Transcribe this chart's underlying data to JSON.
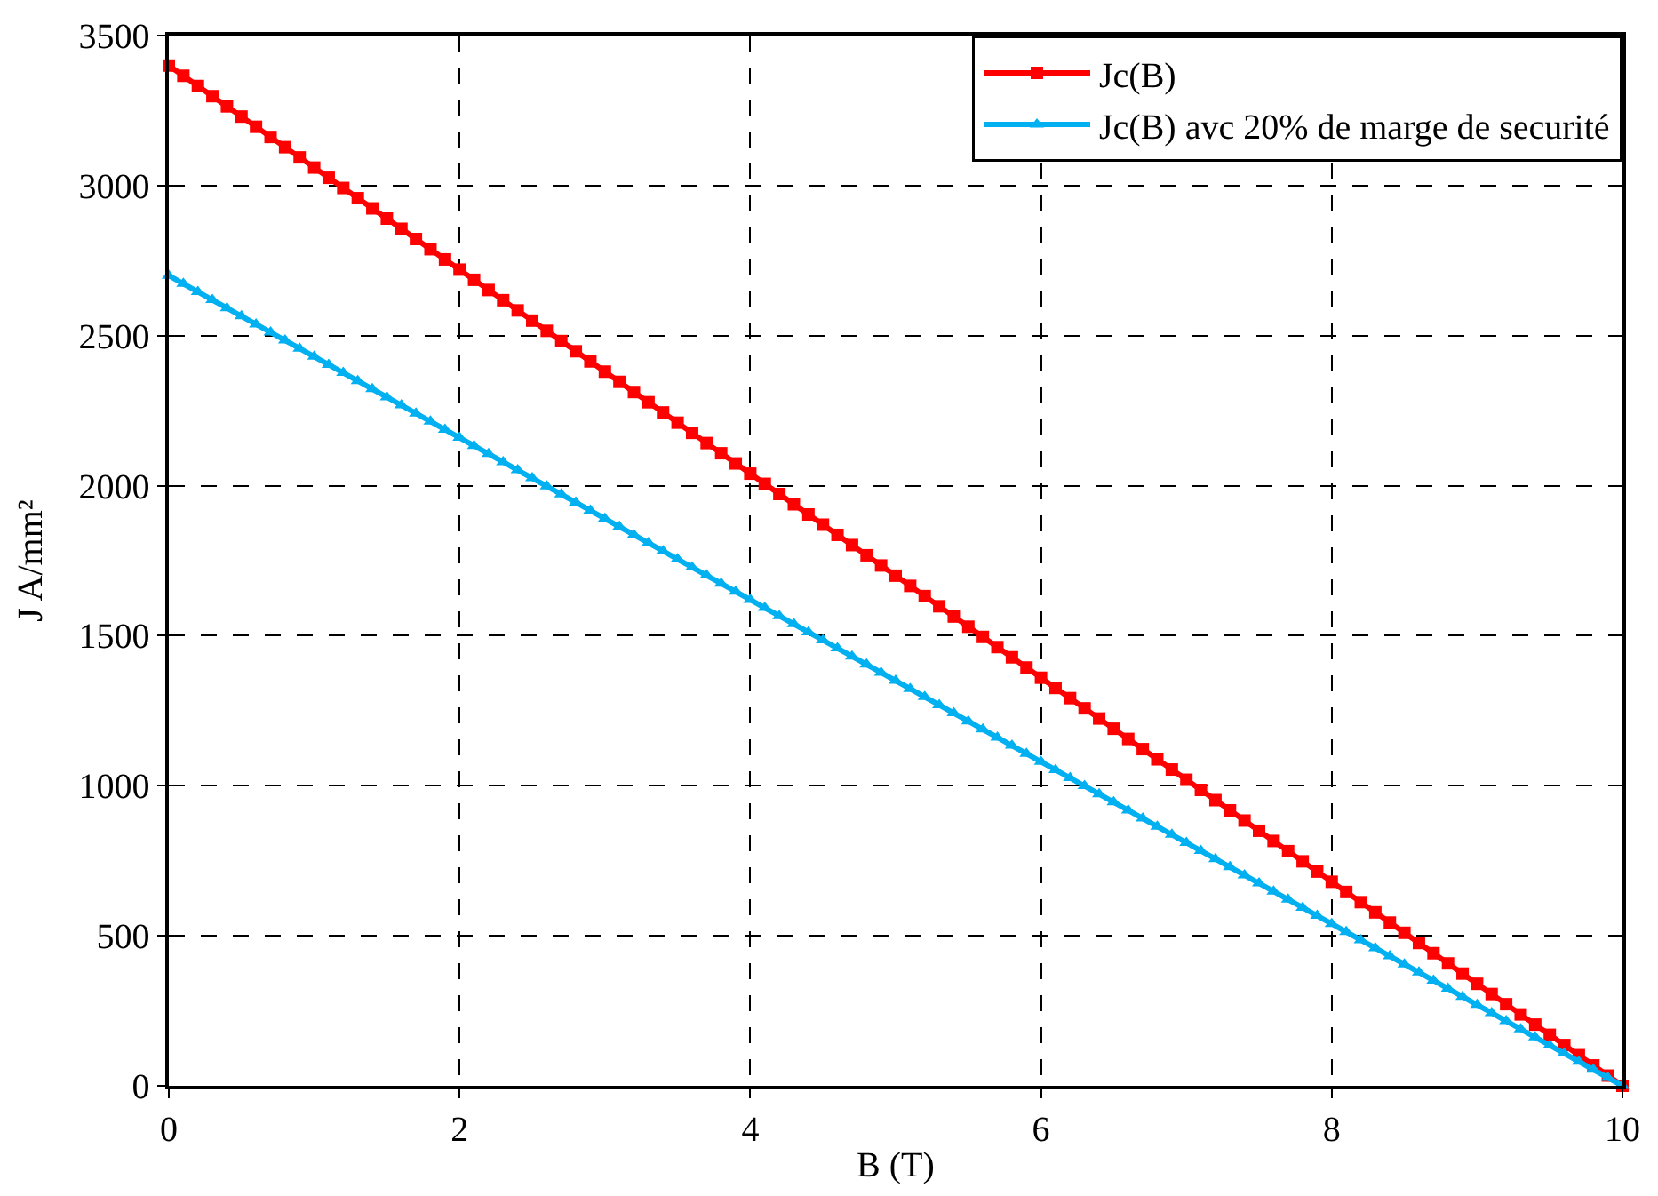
{
  "chart_data": {
    "type": "line",
    "xlabel": "B (T)",
    "ylabel": "J A/mm²",
    "x": [
      0,
      0.1,
      0.2,
      0.3,
      0.4,
      0.5,
      0.6,
      0.7,
      0.8,
      0.9,
      1,
      1.1,
      1.2,
      1.3,
      1.4,
      1.5,
      1.6,
      1.7,
      1.8,
      1.9,
      2,
      2.1,
      2.2,
      2.3,
      2.4,
      2.5,
      2.6,
      2.7,
      2.8,
      2.9,
      3,
      3.1,
      3.2,
      3.3,
      3.4,
      3.5,
      3.6,
      3.7,
      3.8,
      3.9,
      4,
      4.1,
      4.2,
      4.3,
      4.4,
      4.5,
      4.6,
      4.7,
      4.8,
      4.9,
      5,
      5.1,
      5.2,
      5.3,
      5.4,
      5.5,
      5.6,
      5.7,
      5.8,
      5.9,
      6,
      6.1,
      6.2,
      6.3,
      6.4,
      6.5,
      6.6,
      6.7,
      6.8,
      6.9,
      7,
      7.1,
      7.2,
      7.3,
      7.4,
      7.5,
      7.6,
      7.7,
      7.8,
      7.9,
      8,
      8.1,
      8.2,
      8.3,
      8.4,
      8.5,
      8.6,
      8.7,
      8.8,
      8.9,
      9,
      9.1,
      9.2,
      9.3,
      9.4,
      9.5,
      9.6,
      9.7,
      9.8,
      9.9,
      10
    ],
    "series": [
      {
        "name": "Jc(B)",
        "color": "#ff0000",
        "marker": "square",
        "values": [
          3400,
          3366,
          3332,
          3298,
          3264,
          3230,
          3196,
          3162,
          3128,
          3094,
          3060,
          3026,
          2992,
          2958,
          2924,
          2890,
          2856,
          2822,
          2788,
          2754,
          2720,
          2686,
          2652,
          2618,
          2584,
          2550,
          2516,
          2482,
          2448,
          2414,
          2380,
          2346,
          2312,
          2278,
          2244,
          2210,
          2176,
          2142,
          2108,
          2074,
          2040,
          2006,
          1972,
          1938,
          1904,
          1870,
          1836,
          1802,
          1768,
          1734,
          1700,
          1666,
          1632,
          1598,
          1564,
          1530,
          1496,
          1462,
          1428,
          1394,
          1360,
          1326,
          1292,
          1258,
          1224,
          1190,
          1156,
          1122,
          1088,
          1054,
          1020,
          986,
          952,
          918,
          884,
          850,
          816,
          782,
          748,
          714,
          680,
          646,
          612,
          578,
          544,
          510,
          476,
          442,
          408,
          374,
          340,
          306,
          272,
          238,
          204,
          170,
          136,
          102,
          68,
          34,
          0
        ]
      },
      {
        "name": "Jc(B) avc 20% de marge de securité",
        "color": "#00b0f0",
        "marker": "triangle",
        "values": [
          2700,
          2673,
          2646,
          2619,
          2592,
          2565,
          2538,
          2511,
          2484,
          2457,
          2430,
          2403,
          2376,
          2349,
          2322,
          2295,
          2268,
          2241,
          2214,
          2187,
          2160,
          2133,
          2106,
          2079,
          2052,
          2025,
          1998,
          1971,
          1944,
          1917,
          1890,
          1863,
          1836,
          1809,
          1782,
          1755,
          1728,
          1701,
          1674,
          1647,
          1620,
          1593,
          1566,
          1539,
          1512,
          1485,
          1458,
          1431,
          1404,
          1377,
          1350,
          1323,
          1296,
          1269,
          1242,
          1215,
          1188,
          1161,
          1134,
          1107,
          1080,
          1053,
          1026,
          999,
          972,
          945,
          918,
          891,
          864,
          837,
          810,
          783,
          756,
          729,
          702,
          675,
          648,
          621,
          594,
          567,
          540,
          513,
          486,
          459,
          432,
          405,
          378,
          351,
          324,
          297,
          270,
          243,
          216,
          189,
          162,
          135,
          108,
          81,
          54,
          27,
          0
        ]
      }
    ],
    "xlim": [
      0,
      10
    ],
    "xticks": [
      0,
      2,
      4,
      6,
      8,
      10
    ],
    "ylim": [
      0,
      3500
    ],
    "yticks": [
      0,
      500,
      1000,
      1500,
      2000,
      2500,
      3000,
      3500
    ],
    "grid": true,
    "legend": "top right",
    "line_style": "solid"
  }
}
